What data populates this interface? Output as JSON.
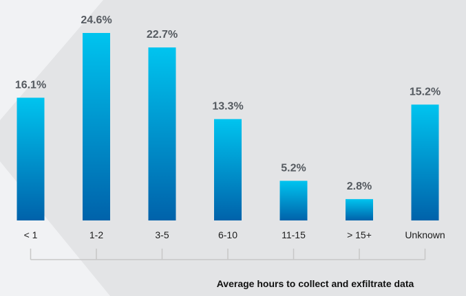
{
  "chart_data": {
    "type": "bar",
    "categories": [
      "< 1",
      "1-2",
      "3-5",
      "6-10",
      "11-15",
      "> 15+",
      "Unknown"
    ],
    "values": [
      16.1,
      24.6,
      22.7,
      13.3,
      5.2,
      2.8,
      15.2
    ],
    "value_labels": [
      "16.1%",
      "24.6%",
      "22.7%",
      "13.3%",
      "5.2%",
      "2.8%",
      "15.2%"
    ],
    "xlabel": "Average hours to collect and exfiltrate data",
    "ylabel": "",
    "ylim": [
      0,
      25
    ],
    "grid": false,
    "legend": "none"
  },
  "colors": {
    "background": "#f1f2f4",
    "backdrop_panel": "#e3e4e6",
    "bar_top": "#00c4ef",
    "bar_bottom": "#0062aa",
    "value_label": "#555a60",
    "tick_label": "#1c1c1c",
    "bracket": "#c7c7c7",
    "axis_title": "#111111"
  }
}
